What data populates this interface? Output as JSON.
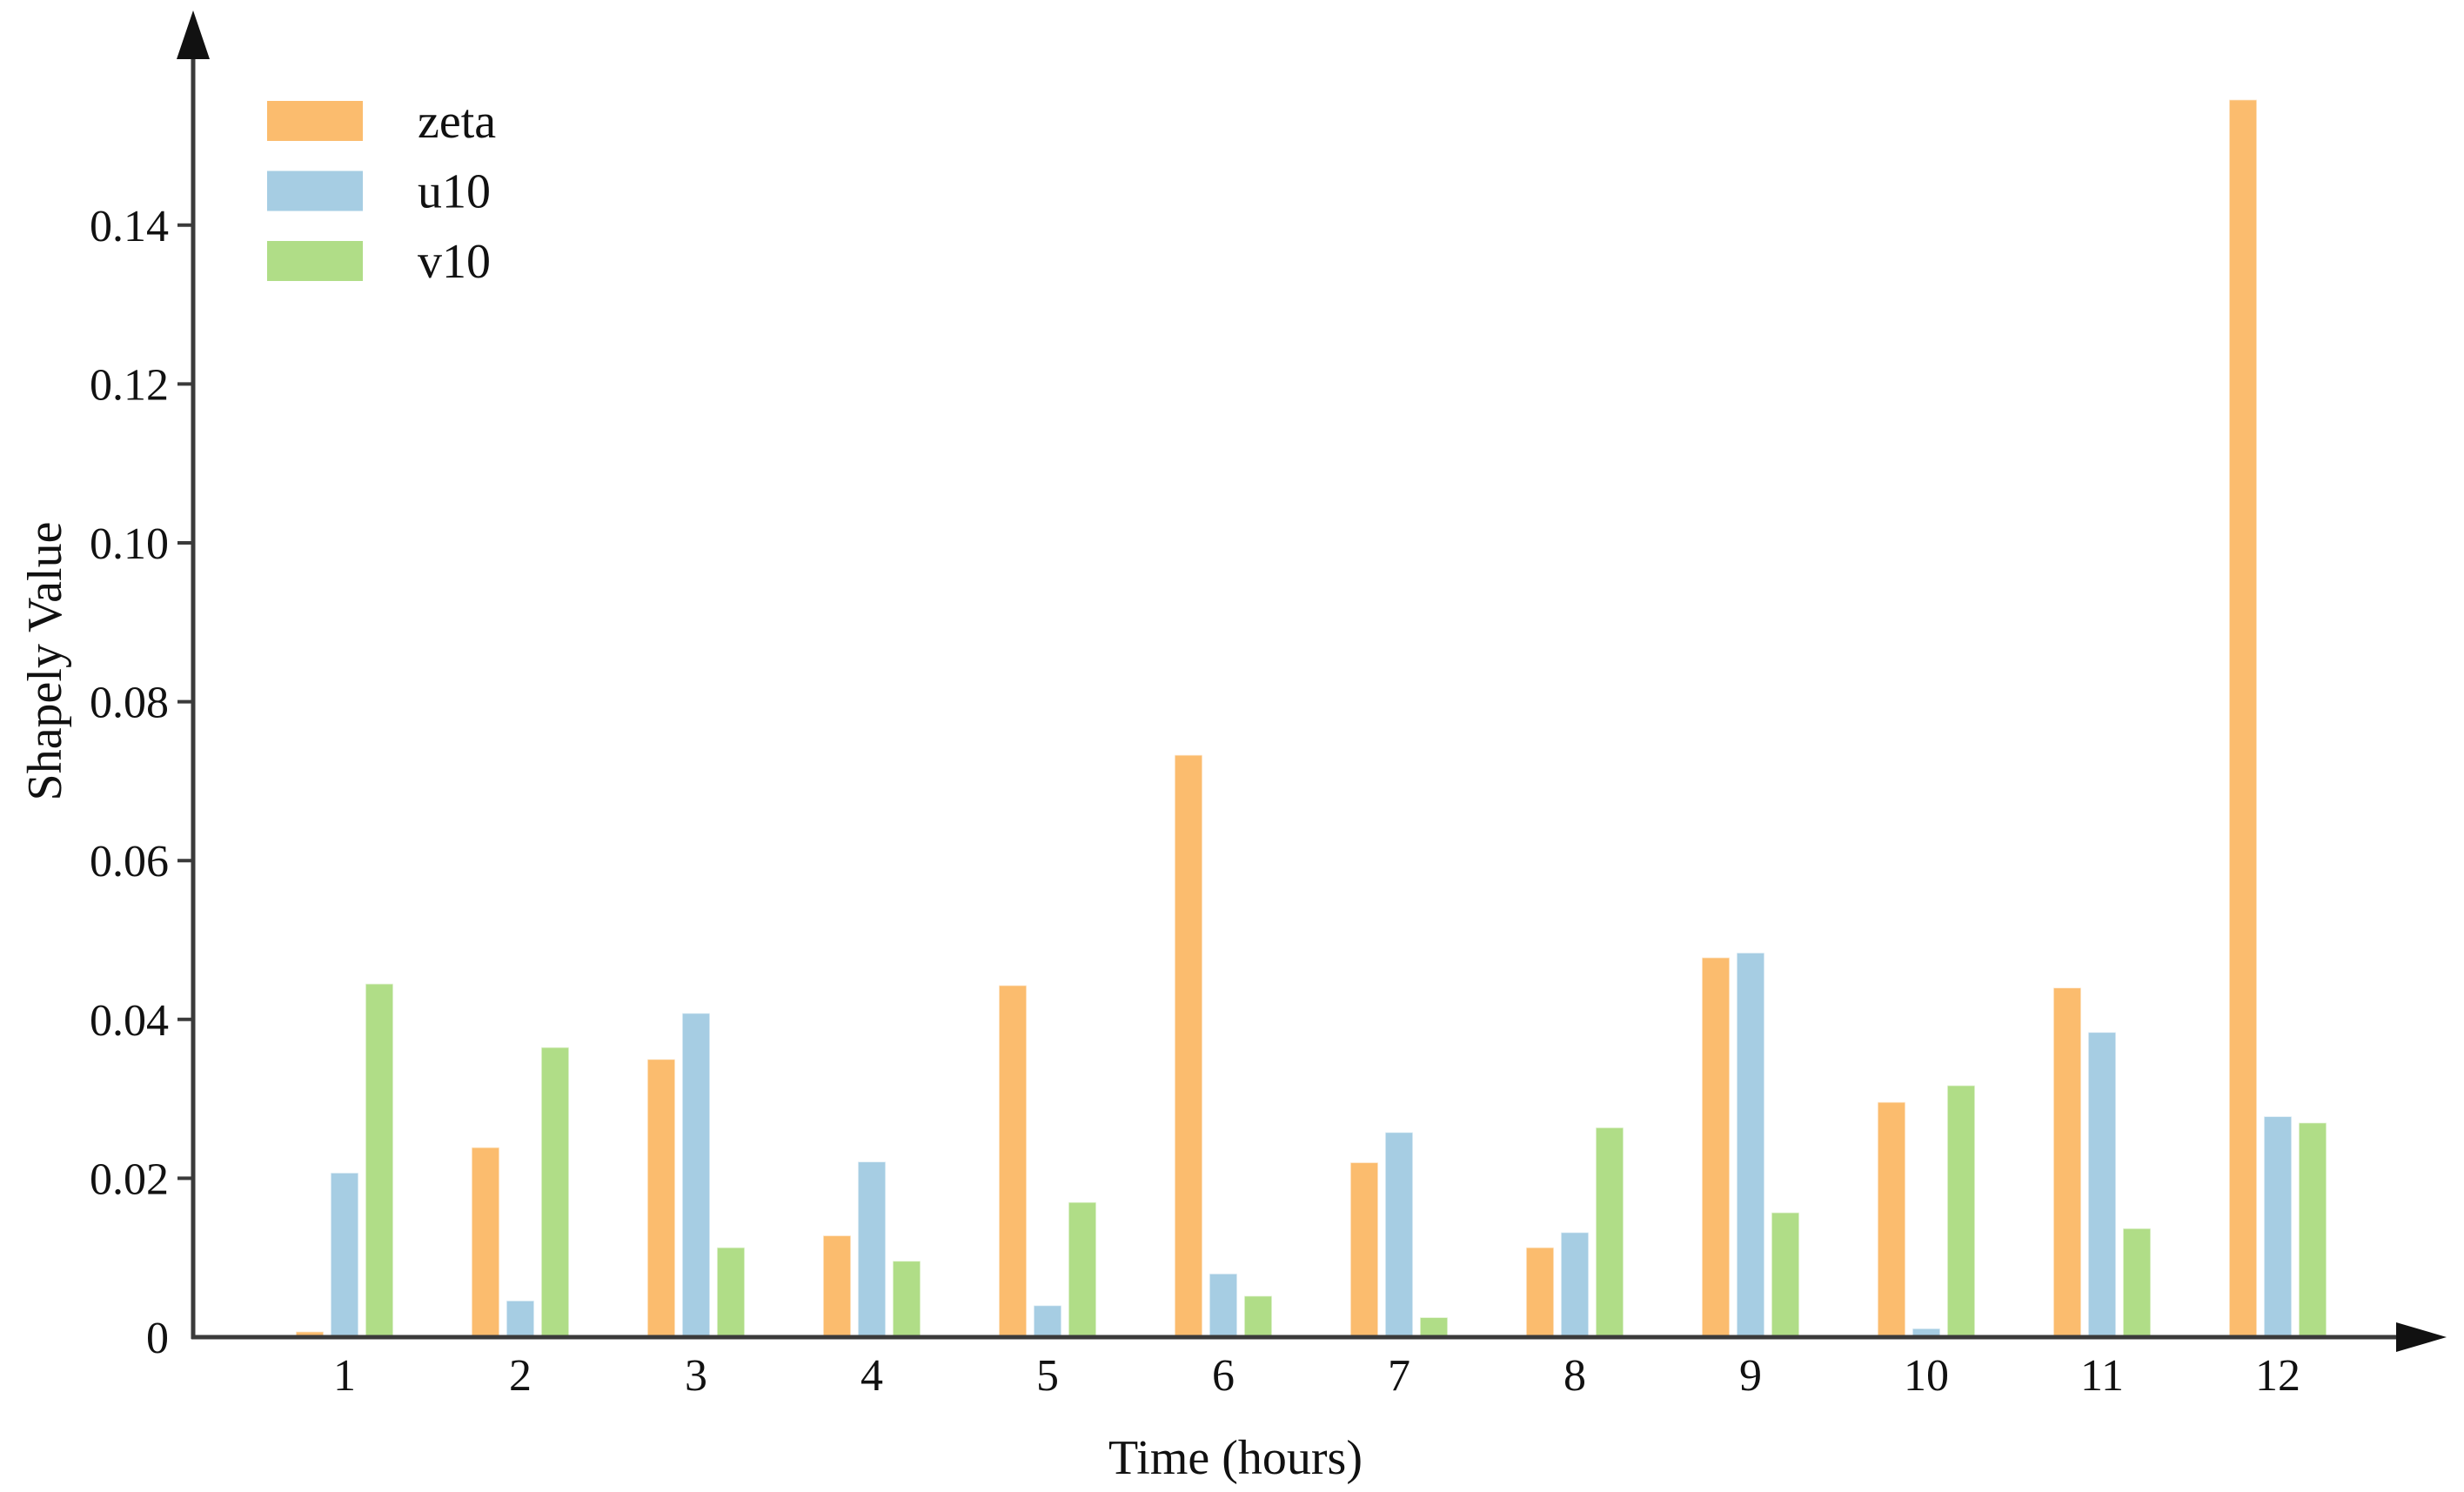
{
  "chart_data": {
    "type": "bar",
    "title": "",
    "xlabel": "Time (hours)",
    "ylabel": "Shapely Value",
    "categories": [
      "1",
      "2",
      "3",
      "4",
      "5",
      "6",
      "7",
      "8",
      "9",
      "10",
      "11",
      "12"
    ],
    "series": [
      {
        "name": "zeta",
        "color": "#FBBC6E",
        "values": [
          0.0007,
          0.0239,
          0.035,
          0.0128,
          0.0443,
          0.0733,
          0.022,
          0.0113,
          0.0478,
          0.0296,
          0.044,
          0.1558
        ]
      },
      {
        "name": "u10",
        "color": "#A6CDE3",
        "values": [
          0.0207,
          0.0046,
          0.0408,
          0.0221,
          0.004,
          0.008,
          0.0258,
          0.0132,
          0.0484,
          0.0011,
          0.0384,
          0.0278
        ]
      },
      {
        "name": "v10",
        "color": "#B0DD87",
        "values": [
          0.0445,
          0.0365,
          0.0113,
          0.0096,
          0.017,
          0.0052,
          0.0025,
          0.0264,
          0.0157,
          0.0317,
          0.0137,
          0.027
        ]
      }
    ],
    "ylim": [
      0,
      0.158
    ],
    "yticks": [
      0,
      0.02,
      0.04,
      0.06,
      0.08,
      0.1,
      0.12,
      0.14
    ],
    "ytick_labels": [
      "0",
      "0.02",
      "0.04",
      "0.06",
      "0.08",
      "0.10",
      "0.12",
      "0.14"
    ],
    "grid": false,
    "legend_position": "upper-left",
    "axis_color": "#3a3a3a",
    "text_color": "#111111"
  }
}
